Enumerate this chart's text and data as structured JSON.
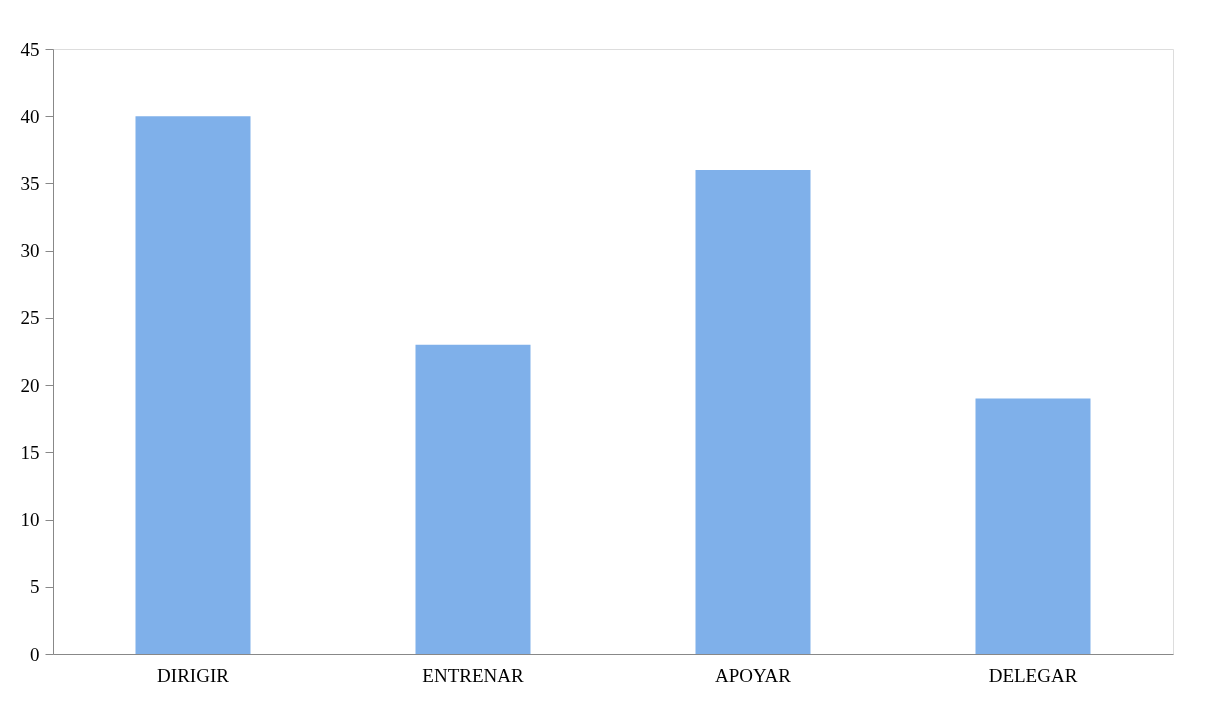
{
  "chart_data": {
    "type": "bar",
    "categories": [
      "DIRIGIR",
      "ENTRENAR",
      "APOYAR",
      "DELEGAR"
    ],
    "values": [
      40,
      23,
      36,
      19
    ],
    "color": "#7fb0ea",
    "ylim": [
      0,
      45
    ],
    "yticks": [
      0,
      5,
      10,
      15,
      20,
      25,
      30,
      35,
      40,
      45
    ],
    "grid": false
  }
}
